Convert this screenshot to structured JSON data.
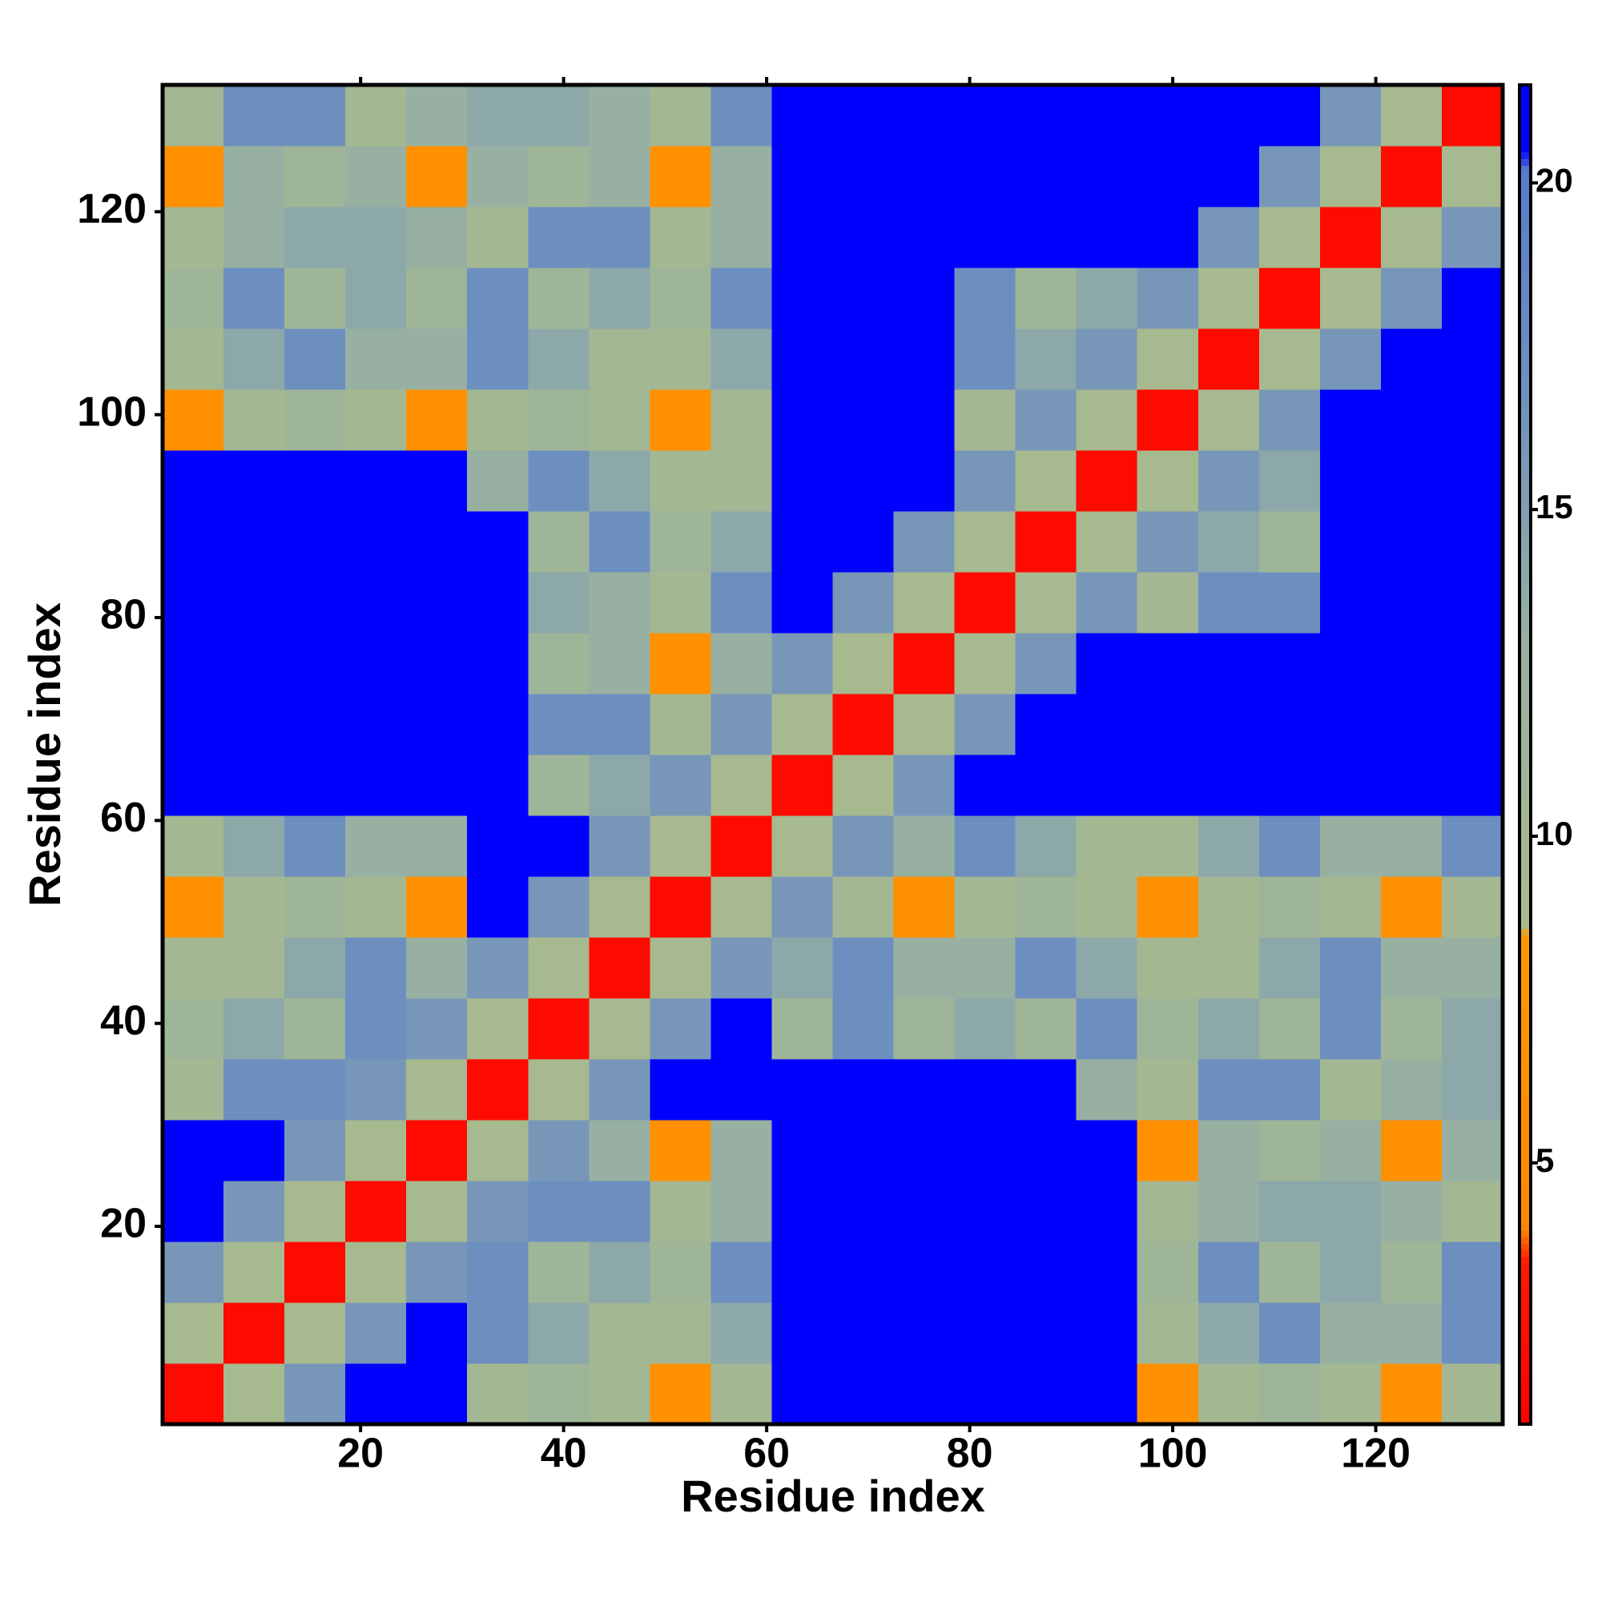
{
  "chart_data": {
    "type": "heatmap",
    "xlabel": "Residue index",
    "ylabel": "Residue index",
    "x_bins": [
      0.5,
      6.5,
      12.5,
      18.5,
      24.5,
      30.5,
      36.5,
      42.5,
      48.5,
      54.5,
      60.5,
      66.5,
      72.5,
      78.5,
      84.5,
      90.5,
      96.5,
      102.5,
      108.5,
      114.5,
      120.5,
      126.5,
      132.5
    ],
    "y_bins": [
      0.5,
      6.5,
      12.5,
      18.5,
      24.5,
      30.5,
      36.5,
      42.5,
      48.5,
      54.5,
      60.5,
      66.5,
      72.5,
      78.5,
      84.5,
      90.5,
      96.5,
      102.5,
      108.5,
      114.5,
      120.5,
      126.5,
      132.5
    ],
    "xlim": [
      0.5,
      132.5
    ],
    "ylim": [
      0.5,
      132.5
    ],
    "xticks": [
      20,
      40,
      60,
      80,
      100,
      120
    ],
    "yticks": [
      20,
      40,
      60,
      80,
      100,
      120
    ],
    "values": [
      [
        2,
        9,
        16,
        21,
        21,
        10,
        11,
        10,
        6,
        10,
        21,
        21,
        21,
        21,
        21,
        21,
        6,
        10,
        11,
        10,
        6,
        10
      ],
      [
        9,
        2,
        9,
        16,
        21,
        17,
        14,
        10,
        10,
        14,
        21,
        21,
        21,
        21,
        21,
        21,
        10,
        14,
        17,
        13,
        13,
        17
      ],
      [
        16,
        9,
        2,
        9,
        16,
        17,
        11,
        14,
        11,
        17,
        21,
        21,
        21,
        21,
        21,
        21,
        11,
        17,
        11,
        14,
        11,
        17
      ],
      [
        21,
        16,
        9,
        2,
        9,
        16,
        17,
        17,
        10,
        13,
        21,
        21,
        21,
        21,
        21,
        21,
        10,
        13,
        14,
        14,
        13,
        10
      ],
      [
        21,
        21,
        16,
        9,
        2,
        9,
        16,
        13,
        6,
        13,
        21,
        21,
        21,
        21,
        21,
        21,
        6,
        13,
        11,
        13,
        6,
        13
      ],
      [
        10,
        17,
        17,
        16,
        9,
        2,
        9,
        16,
        21,
        21,
        21,
        21,
        21,
        21,
        21,
        13,
        10,
        17,
        17,
        10,
        13,
        14
      ],
      [
        11,
        14,
        11,
        17,
        16,
        9,
        2,
        9,
        16,
        21,
        11,
        17,
        11,
        14,
        11,
        17,
        11,
        14,
        11,
        17,
        11,
        14
      ],
      [
        10,
        10,
        14,
        17,
        13,
        16,
        9,
        2,
        9,
        16,
        14,
        17,
        13,
        13,
        17,
        14,
        10,
        10,
        14,
        17,
        13,
        13
      ],
      [
        6,
        10,
        11,
        10,
        6,
        21,
        16,
        9,
        2,
        9,
        16,
        10,
        6,
        10,
        11,
        10,
        6,
        10,
        11,
        10,
        6,
        10
      ],
      [
        10,
        14,
        17,
        13,
        13,
        21,
        21,
        16,
        9,
        2,
        9,
        16,
        13,
        17,
        14,
        10,
        10,
        14,
        17,
        13,
        13,
        17
      ],
      [
        21,
        21,
        21,
        21,
        21,
        21,
        11,
        14,
        16,
        9,
        2,
        9,
        16,
        21,
        21,
        21,
        21,
        21,
        21,
        21,
        21,
        21
      ],
      [
        21,
        21,
        21,
        21,
        21,
        21,
        17,
        17,
        10,
        16,
        9,
        2,
        9,
        16,
        21,
        21,
        21,
        21,
        21,
        21,
        21,
        21
      ],
      [
        21,
        21,
        21,
        21,
        21,
        21,
        11,
        13,
        6,
        13,
        16,
        9,
        2,
        9,
        16,
        21,
        21,
        21,
        21,
        21,
        21,
        21
      ],
      [
        21,
        21,
        21,
        21,
        21,
        21,
        14,
        13,
        10,
        17,
        21,
        16,
        9,
        2,
        9,
        16,
        10,
        17,
        17,
        21,
        21,
        21
      ],
      [
        21,
        21,
        21,
        21,
        21,
        21,
        11,
        17,
        11,
        14,
        21,
        21,
        16,
        9,
        2,
        9,
        16,
        14,
        11,
        21,
        21,
        21
      ],
      [
        21,
        21,
        21,
        21,
        21,
        13,
        17,
        14,
        10,
        10,
        21,
        21,
        21,
        16,
        9,
        2,
        9,
        16,
        14,
        21,
        21,
        21
      ],
      [
        6,
        10,
        11,
        10,
        6,
        10,
        11,
        10,
        6,
        10,
        21,
        21,
        21,
        10,
        16,
        9,
        2,
        9,
        16,
        21,
        21,
        21
      ],
      [
        10,
        14,
        17,
        13,
        13,
        17,
        14,
        10,
        10,
        14,
        21,
        21,
        21,
        17,
        14,
        16,
        9,
        2,
        9,
        16,
        21,
        21
      ],
      [
        11,
        17,
        11,
        14,
        11,
        17,
        11,
        14,
        11,
        17,
        21,
        21,
        21,
        17,
        11,
        14,
        16,
        9,
        2,
        9,
        16,
        21
      ],
      [
        10,
        13,
        14,
        14,
        13,
        10,
        17,
        17,
        10,
        13,
        21,
        21,
        21,
        21,
        21,
        21,
        21,
        16,
        9,
        2,
        9,
        16
      ],
      [
        6,
        13,
        11,
        13,
        6,
        13,
        11,
        13,
        6,
        13,
        21,
        21,
        21,
        21,
        21,
        21,
        21,
        21,
        16,
        9,
        2,
        9
      ],
      [
        10,
        17,
        17,
        10,
        13,
        14,
        14,
        13,
        10,
        17,
        21,
        21,
        21,
        21,
        21,
        21,
        21,
        21,
        21,
        16,
        9,
        2
      ]
    ],
    "clim": [
      1,
      21.5
    ],
    "cticks": [
      5,
      10,
      15,
      20
    ],
    "colorscale": [
      [
        1,
        "#ff0000"
      ],
      [
        3.5,
        "#ff1a00"
      ],
      [
        4,
        "#ff8800"
      ],
      [
        8.5,
        "#ff9900"
      ],
      [
        8.6,
        "#a9ba8c"
      ],
      [
        13,
        "#97b0a2"
      ],
      [
        17,
        "#6d8fbf"
      ],
      [
        20.2,
        "#5a7ccc"
      ],
      [
        20.5,
        "#0000ff"
      ],
      [
        21.5,
        "#0000ff"
      ]
    ]
  }
}
